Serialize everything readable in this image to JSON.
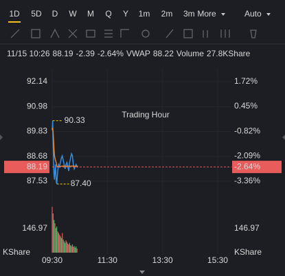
{
  "toolbar": {
    "tabs": [
      "1D",
      "5D",
      "D",
      "W",
      "M",
      "Q",
      "Y",
      "1m",
      "2m",
      "3m",
      "More"
    ],
    "active": 0,
    "mode": "Auto"
  },
  "info": {
    "time": "11/15 10:26",
    "price": 88.19,
    "change": -2.39,
    "change_pct": "-2.64%",
    "vwap_label": "VWAP",
    "vwap": 88.22,
    "volume_label": "Volume",
    "volume": "27.8KShare"
  },
  "chart_data": {
    "type": "line",
    "watermark": "Trading Hour",
    "x": [
      0,
      1,
      2,
      3,
      4,
      5,
      6,
      7,
      8,
      9,
      10,
      11,
      12,
      14,
      16,
      18,
      20,
      22,
      24,
      26,
      28,
      30,
      32,
      34,
      36,
      38,
      40,
      42,
      44,
      46,
      48,
      50,
      52,
      54,
      56
    ],
    "series": [
      {
        "name": "Price",
        "color": "#2f8fe8",
        "values": [
          89.9,
          90.33,
          89.3,
          88.4,
          87.8,
          87.6,
          88.0,
          88.3,
          87.9,
          87.5,
          87.4,
          87.7,
          88.0,
          88.3,
          88.2,
          88.4,
          88.6,
          88.7,
          88.5,
          88.3,
          88.1,
          88.3,
          88.4,
          88.2,
          88.0,
          88.4,
          88.6,
          88.8,
          88.7,
          88.3,
          88.1,
          88.2,
          88.3,
          88.2,
          88.19
        ]
      },
      {
        "name": "VWAP",
        "color": "#e6872e",
        "values": [
          89.9,
          90.0,
          89.8,
          89.4,
          89.0,
          88.7,
          88.6,
          88.5,
          88.45,
          88.35,
          88.25,
          88.2,
          88.2,
          88.2,
          88.2,
          88.21,
          88.22,
          88.23,
          88.23,
          88.23,
          88.22,
          88.22,
          88.22,
          88.22,
          88.22,
          88.22,
          88.22,
          88.23,
          88.23,
          88.23,
          88.22,
          88.22,
          88.22,
          88.22,
          88.22
        ]
      }
    ],
    "high": 90.33,
    "low": {
      "value": 87.4,
      "label": "87.40"
    },
    "xlim": [
      0,
      390
    ],
    "xticks": [
      {
        "value": 0,
        "label": "09:30"
      },
      {
        "value": 120,
        "label": "11:30"
      },
      {
        "value": 240,
        "label": "13:30"
      },
      {
        "value": 360,
        "label": "15:30"
      }
    ],
    "ylim": [
      86.7,
      92.74
    ],
    "yticks": [
      92.14,
      90.98,
      89.83,
      88.68,
      87.53
    ],
    "y2lim": [
      -4.28,
      2.38
    ],
    "y2ticks": [
      {
        "value": 1.72,
        "label": "1.72%"
      },
      {
        "value": 0.45,
        "label": "0.45%"
      },
      {
        "value": -0.82,
        "label": "-0.82%"
      },
      {
        "value": -2.09,
        "label": "-2.09%"
      },
      {
        "value": -3.36,
        "label": "-3.36%"
      }
    ],
    "up_color": "#3fbf6a",
    "down_color": "#e85c5c",
    "volume": {
      "x": [
        0,
        2,
        4,
        6,
        8,
        10,
        12,
        14,
        16,
        18,
        20,
        22,
        24,
        26,
        28,
        30,
        32,
        34,
        36,
        38,
        40,
        42,
        44,
        46,
        48,
        50,
        52,
        54
      ],
      "values": [
        280,
        240,
        200,
        180,
        150,
        160,
        130,
        120,
        110,
        100,
        90,
        120,
        80,
        70,
        60,
        75,
        65,
        55,
        50,
        60,
        45,
        40,
        50,
        35,
        40,
        30,
        38,
        25
      ],
      "colors": [
        "#e85c5c",
        "#e85c5c",
        "#3fbf6a",
        "#e85c5c",
        "#3fbf6a",
        "#3fbf6a",
        "#e85c5c",
        "#3fbf6a",
        "#e85c5c",
        "#3fbf6a",
        "#3fbf6a",
        "#e85c5c",
        "#3fbf6a",
        "#e85c5c",
        "#3fbf6a",
        "#e85c5c",
        "#3fbf6a",
        "#e85c5c",
        "#e85c5c",
        "#3fbf6a",
        "#3fbf6a",
        "#e85c5c",
        "#3fbf6a",
        "#e85c5c",
        "#3fbf6a",
        "#e85c5c",
        "#3fbf6a",
        "#e85c5c"
      ],
      "ylim": [
        0,
        294
      ],
      "yticks": [
        146.97
      ],
      "unit": "KShare"
    }
  }
}
